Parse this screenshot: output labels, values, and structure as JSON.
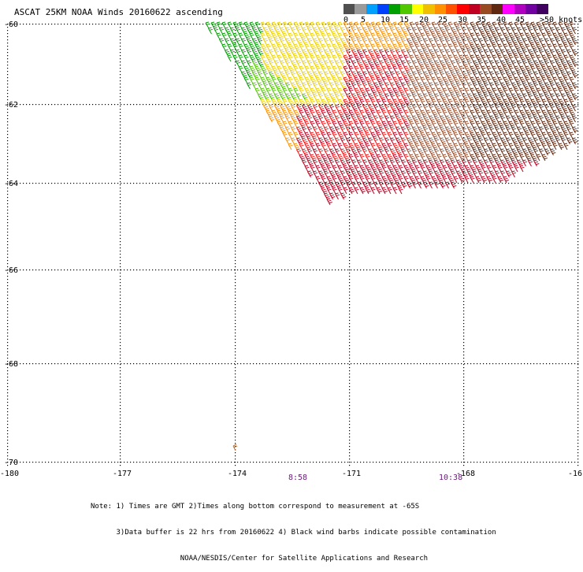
{
  "title": "ASCAT 25KM NOAA Winds 20160622 ascending",
  "colorbar": {
    "colors": [
      "#505050",
      "#9a9a9a",
      "#00a0ff",
      "#0040ff",
      "#00a000",
      "#50c800",
      "#ffff00",
      "#f0c000",
      "#ff9000",
      "#ff5000",
      "#ff0000",
      "#c00020",
      "#9a4a20",
      "#602810",
      "#ff00ff",
      "#b000c0",
      "#7000a0",
      "#400060"
    ],
    "labels": [
      "0",
      "5",
      "10",
      "15",
      "20",
      "25",
      "30",
      "35",
      "40",
      "45",
      ">50 knots"
    ]
  },
  "y_axis_labels": [
    "-60",
    "-62",
    "-64",
    "-66",
    "-68",
    "-70"
  ],
  "x_axis_labels": [
    "-180",
    "-177",
    "-174",
    "-171",
    "-168",
    "-16"
  ],
  "times": [
    "8:58",
    "10:38"
  ],
  "notes": [
    "Note: 1) Times are GMT 2)Times along bottom correspond to measurement at -65S",
    "      3)Data buffer is 22 hrs from 20160622 4) Black wind barbs indicate possible contamination",
    "                     NOAA/NESDIS/Center for Satellite Applications and Research"
  ],
  "wind_field": {
    "description": "swath of wind barbs in upper right; colors from green (15-20 kt) through yellow/orange/red to brown (35-40 kt)"
  }
}
